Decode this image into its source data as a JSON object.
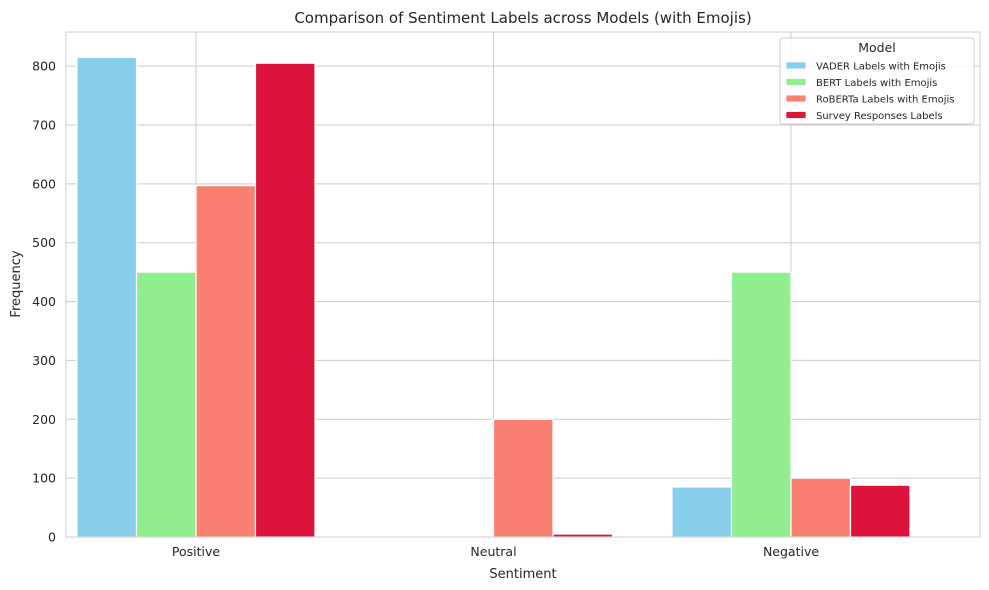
{
  "chart_data": {
    "type": "bar",
    "title": "Comparison of Sentiment Labels across Models (with Emojis)",
    "xlabel": "Sentiment",
    "ylabel": "Frequency",
    "categories": [
      "Positive",
      "Neutral",
      "Negative"
    ],
    "ylim": [
      0,
      858
    ],
    "yticks": [
      0,
      100,
      200,
      300,
      400,
      500,
      600,
      700,
      800
    ],
    "grid": true,
    "legend": {
      "title": "Model",
      "placement": "top-right"
    },
    "series": [
      {
        "name": "VADER Labels with Emojis",
        "color": "#87ceeb",
        "values": [
          815,
          0,
          85
        ]
      },
      {
        "name": "BERT Labels with Emojis",
        "color": "#90ee90",
        "values": [
          450,
          0,
          450
        ]
      },
      {
        "name": "RoBERTa Labels with Emojis",
        "color": "#fa8072",
        "values": [
          597,
          200,
          100
        ]
      },
      {
        "name": "Survey Responses Labels",
        "color": "#dc143c",
        "values": [
          805,
          5,
          88
        ]
      }
    ]
  }
}
